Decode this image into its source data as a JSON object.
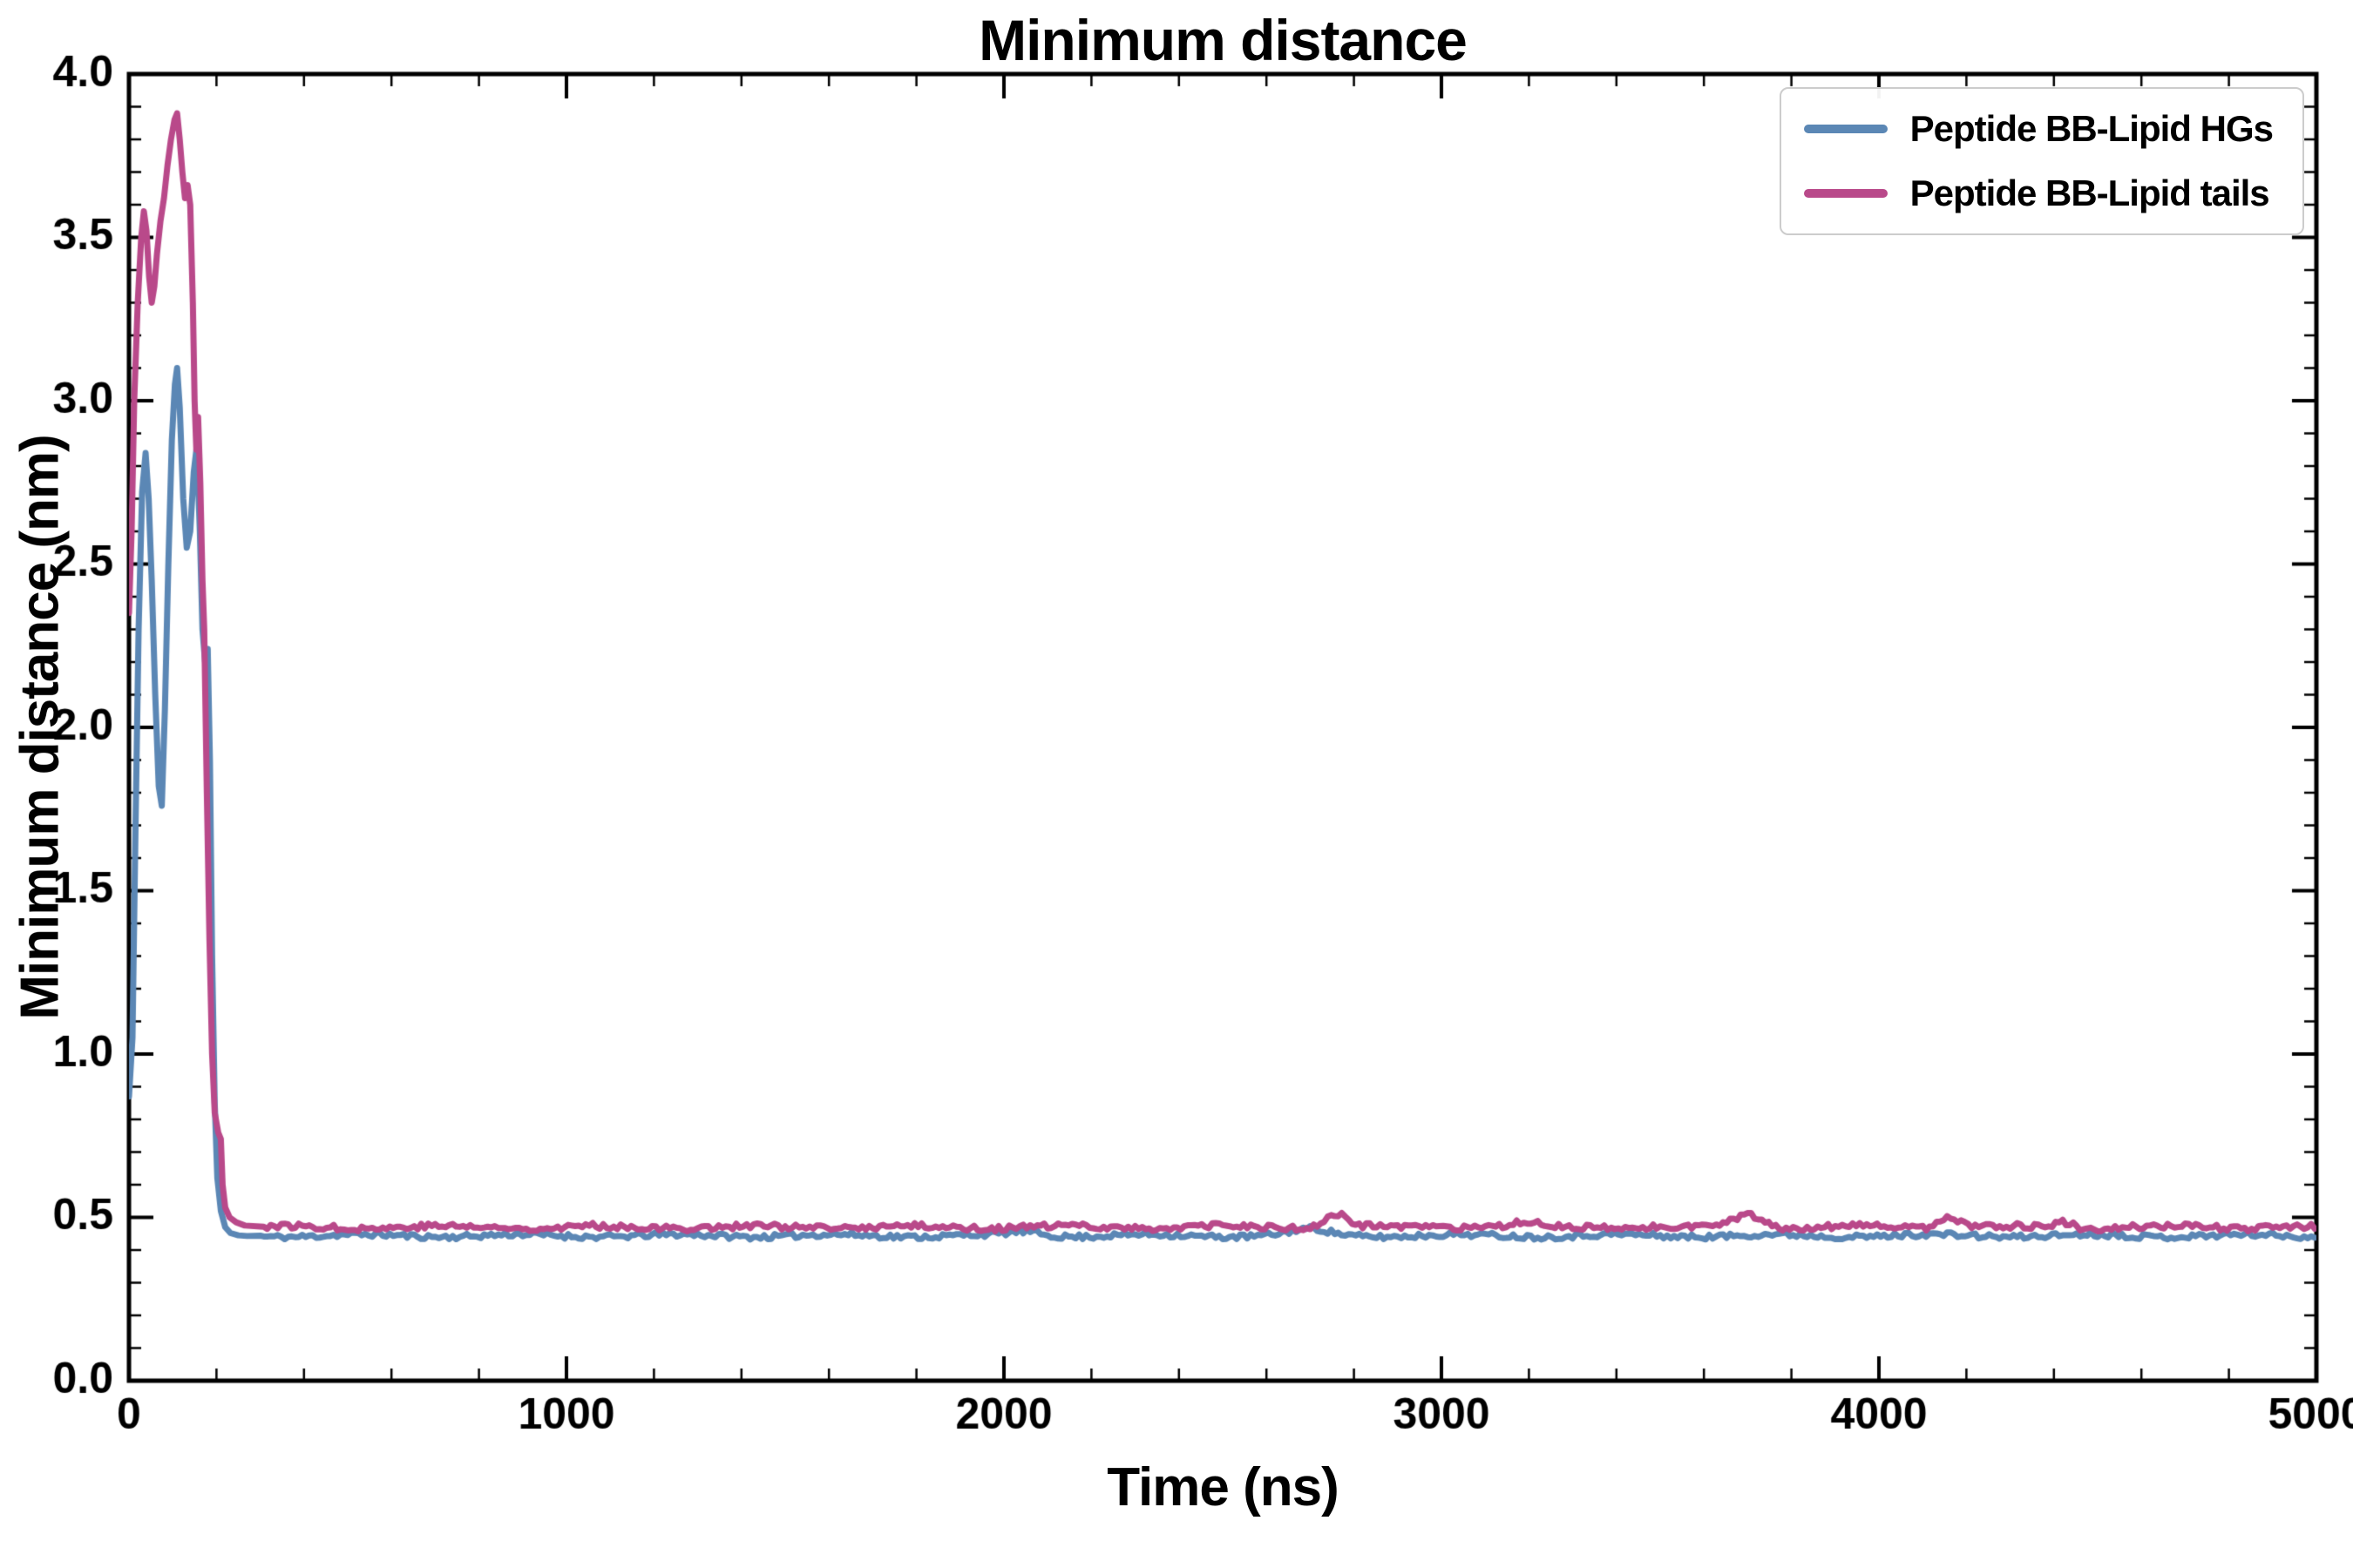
{
  "title": "Minimum distance",
  "axis": {
    "xlabel": "Time (ns)",
    "ylabel": "Minimum distance (nm)"
  },
  "chart_data": {
    "type": "line",
    "title": "Minimum distance",
    "xlabel": "Time (ns)",
    "ylabel": "Minimum distance (nm)",
    "xlim": [
      0,
      5000
    ],
    "ylim": [
      0.0,
      4.0
    ],
    "xticks": [
      0,
      1000,
      2000,
      3000,
      4000,
      5000
    ],
    "yticks": [
      0.0,
      0.5,
      1.0,
      1.5,
      2.0,
      2.5,
      3.0,
      3.5,
      4.0
    ],
    "x_minor_step": 200,
    "y_minor_step": 0.1,
    "grid": false,
    "legend_position": "upper right",
    "line_width": 7,
    "series": [
      {
        "name": "Peptide BB-Lipid HGs",
        "color": "#5b87b5",
        "transient": [
          [
            0,
            0.87
          ],
          [
            8,
            1.05
          ],
          [
            15,
            1.7
          ],
          [
            22,
            2.3
          ],
          [
            30,
            2.72
          ],
          [
            38,
            2.84
          ],
          [
            45,
            2.7
          ],
          [
            52,
            2.45
          ],
          [
            60,
            2.1
          ],
          [
            68,
            1.82
          ],
          [
            75,
            1.76
          ],
          [
            82,
            2.05
          ],
          [
            90,
            2.5
          ],
          [
            98,
            2.88
          ],
          [
            105,
            3.05
          ],
          [
            110,
            3.1
          ],
          [
            116,
            2.98
          ],
          [
            124,
            2.7
          ],
          [
            132,
            2.55
          ],
          [
            140,
            2.6
          ],
          [
            148,
            2.78
          ],
          [
            155,
            2.86
          ],
          [
            162,
            2.6
          ],
          [
            168,
            2.3
          ],
          [
            174,
            2.2
          ],
          [
            180,
            2.24
          ],
          [
            185,
            1.9
          ],
          [
            190,
            1.3
          ],
          [
            196,
            0.85
          ],
          [
            202,
            0.62
          ],
          [
            210,
            0.52
          ],
          [
            220,
            0.47
          ],
          [
            232,
            0.452
          ],
          [
            250,
            0.445
          ],
          [
            270,
            0.443
          ],
          [
            300,
            0.444
          ]
        ],
        "steady": {
          "t_start": 300,
          "t_end": 5000,
          "step": 8,
          "mean": 0.444,
          "noise_hf": 0.008,
          "noise_lf": 0.004,
          "seed": 11,
          "bumps": [
            {
              "t": 2050,
              "h": 0.012,
              "w": 50
            },
            {
              "t": 2700,
              "h": 0.018,
              "w": 60
            }
          ]
        }
      },
      {
        "name": "Peptide BB-Lipid tails",
        "color": "#b9498a",
        "transient": [
          [
            0,
            2.35
          ],
          [
            6,
            2.6
          ],
          [
            12,
            3.0
          ],
          [
            20,
            3.3
          ],
          [
            28,
            3.5
          ],
          [
            34,
            3.58
          ],
          [
            40,
            3.52
          ],
          [
            46,
            3.38
          ],
          [
            52,
            3.3
          ],
          [
            58,
            3.35
          ],
          [
            64,
            3.45
          ],
          [
            72,
            3.55
          ],
          [
            80,
            3.62
          ],
          [
            88,
            3.72
          ],
          [
            96,
            3.8
          ],
          [
            104,
            3.86
          ],
          [
            110,
            3.88
          ],
          [
            116,
            3.8
          ],
          [
            122,
            3.7
          ],
          [
            128,
            3.62
          ],
          [
            134,
            3.66
          ],
          [
            140,
            3.6
          ],
          [
            146,
            3.3
          ],
          [
            150,
            3.0
          ],
          [
            154,
            2.85
          ],
          [
            158,
            2.95
          ],
          [
            163,
            2.75
          ],
          [
            168,
            2.45
          ],
          [
            172,
            2.3
          ],
          [
            178,
            1.8
          ],
          [
            184,
            1.35
          ],
          [
            190,
            1.0
          ],
          [
            196,
            0.82
          ],
          [
            204,
            0.76
          ],
          [
            210,
            0.74
          ],
          [
            214,
            0.6
          ],
          [
            220,
            0.53
          ],
          [
            230,
            0.5
          ],
          [
            245,
            0.485
          ],
          [
            265,
            0.475
          ],
          [
            300,
            0.472
          ]
        ],
        "steady": {
          "t_start": 300,
          "t_end": 5000,
          "step": 8,
          "mean": 0.47,
          "noise_hf": 0.009,
          "noise_lf": 0.004,
          "seed": 77,
          "bumps": [
            {
              "t": 2760,
              "h": 0.04,
              "w": 35
            },
            {
              "t": 3200,
              "h": 0.015,
              "w": 40
            },
            {
              "t": 3700,
              "h": 0.038,
              "w": 45
            },
            {
              "t": 4160,
              "h": 0.03,
              "w": 35
            },
            {
              "t": 4420,
              "h": 0.018,
              "w": 30
            }
          ]
        }
      }
    ]
  }
}
